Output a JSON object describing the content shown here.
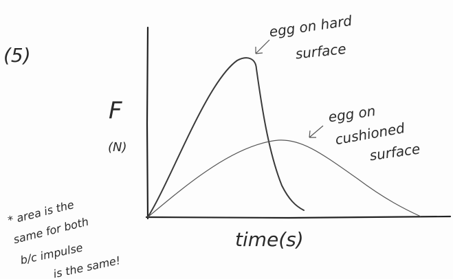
{
  "problem_label": "(5)",
  "y_axis": {
    "symbol": "F",
    "unit": "(N)"
  },
  "x_axis": {
    "label": "time(s)"
  },
  "annotations": [
    {
      "lines": [
        "egg on hard",
        "surface"
      ]
    },
    {
      "lines": [
        "egg on",
        "cushioned",
        "surface"
      ]
    }
  ],
  "note": {
    "lines": [
      "* area is the",
      "same for both",
      "b/c impulse",
      "is the same!"
    ]
  }
}
